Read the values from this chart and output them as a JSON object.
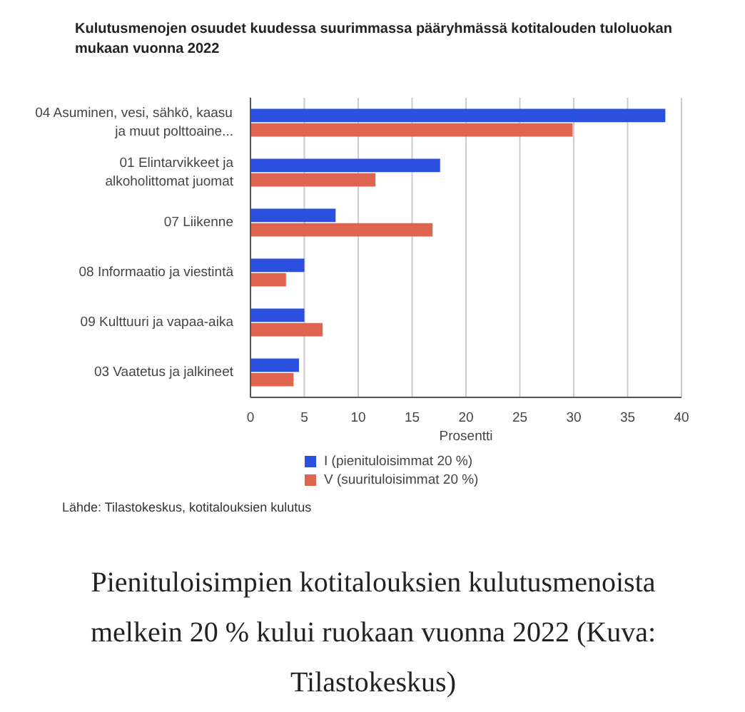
{
  "chart_data": {
    "type": "bar",
    "orientation": "horizontal",
    "title": "Kulutusmenojen osuudet kuudessa suurimmassa pääryhmässä kotitalouden tuloluokan mukaan vuonna 2022",
    "xlabel": "Prosentti",
    "categories": [
      "04 Asuminen, vesi, sähkö, kaasu ja muut polttoaine...",
      "01 Elintarvikkeet ja alkoholittomat juomat",
      "07 Liikenne",
      "08 Informaatio ja viestintä",
      "09 Kulttuuri ja vapaa-aika",
      "03 Vaatetus ja jalkineet"
    ],
    "series": [
      {
        "name": "I (pienituloisimmat 20 %)",
        "color": "#2b50df",
        "values": [
          38.5,
          17.6,
          7.9,
          5.0,
          5.0,
          4.5
        ]
      },
      {
        "name": "V (suurituloisimmat 20 %)",
        "color": "#e06551",
        "values": [
          29.9,
          11.6,
          16.9,
          3.3,
          6.7,
          4.0
        ]
      }
    ],
    "xlim": [
      0,
      40
    ],
    "xticks": [
      0,
      5,
      10,
      15,
      20,
      25,
      30,
      35,
      40
    ],
    "grid": "x",
    "legend": "bottom",
    "annotations": [
      "Lähde: Tilastokeskus, kotitalouksien kulutus",
      "Pienituloisimpien kotitalouksien kulutusmenoista melkein 20 % kului ruokaan vuonna 2022 (Kuva: Tilastokeskus)"
    ]
  }
}
